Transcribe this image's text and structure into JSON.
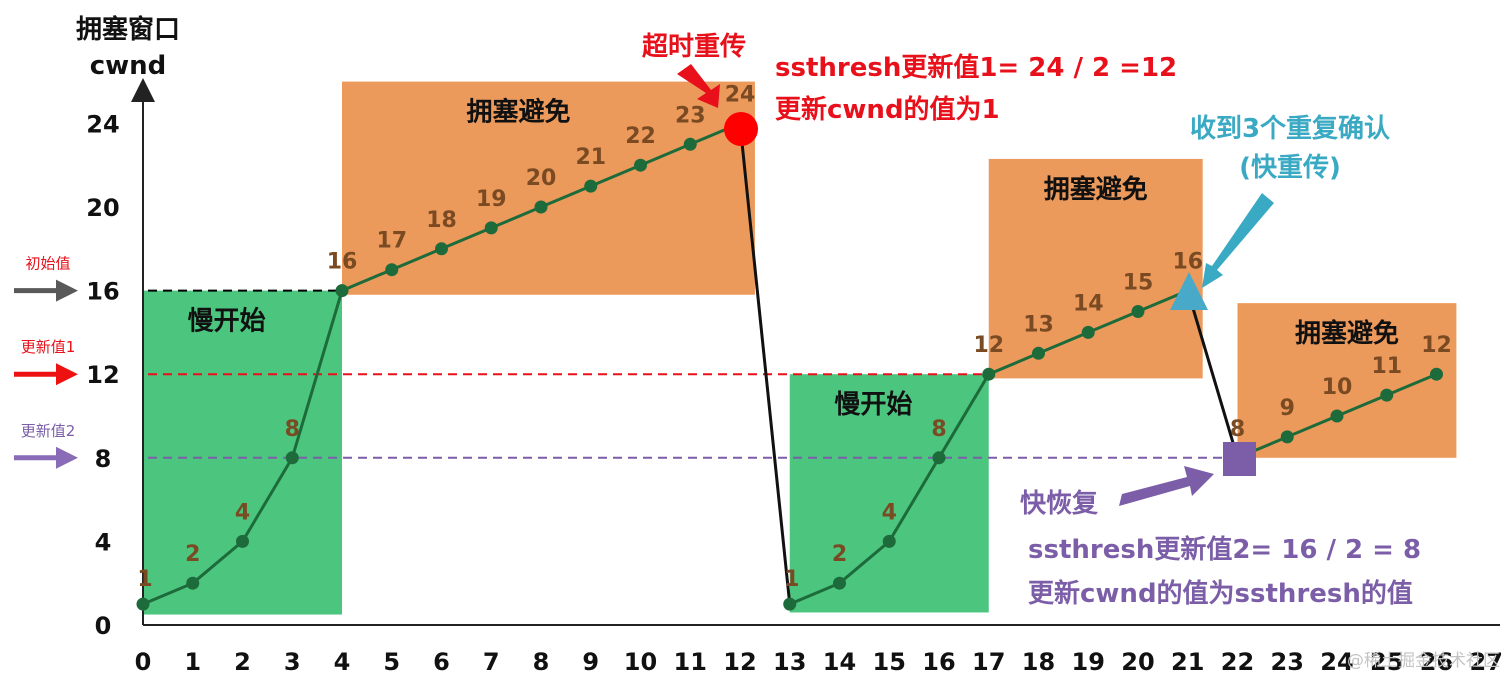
{
  "chart_data": {
    "type": "line",
    "ylabel_line1": "拥塞窗口",
    "ylabel_line2": "cwnd",
    "xlim": [
      0,
      27
    ],
    "ylim": [
      0,
      26
    ],
    "x_ticks": [
      0,
      1,
      2,
      3,
      4,
      5,
      6,
      7,
      8,
      9,
      10,
      11,
      12,
      13,
      14,
      15,
      16,
      17,
      18,
      19,
      20,
      21,
      22,
      23,
      24,
      25,
      26,
      27
    ],
    "y_ticks": [
      0,
      4,
      8,
      12,
      16,
      20,
      24
    ],
    "series": [
      {
        "segment": "1",
        "x": [
          0,
          1,
          2,
          3,
          4,
          5,
          6,
          7,
          8,
          9,
          10,
          11,
          12
        ],
        "y": [
          1,
          2,
          4,
          8,
          16,
          17,
          18,
          19,
          20,
          21,
          22,
          23,
          24
        ]
      },
      {
        "segment": "2",
        "x": [
          13,
          14,
          15,
          16,
          17,
          18,
          19,
          20,
          21
        ],
        "y": [
          1,
          2,
          4,
          8,
          12,
          13,
          14,
          15,
          16
        ]
      },
      {
        "segment": "3",
        "x": [
          22,
          23,
          24,
          25,
          26
        ],
        "y": [
          8,
          9,
          10,
          11,
          12
        ]
      }
    ],
    "drops": [
      {
        "from": [
          12,
          24
        ],
        "to": [
          13,
          1
        ]
      },
      {
        "from": [
          21,
          16
        ],
        "to": [
          22,
          8
        ]
      }
    ],
    "point_labels": [
      {
        "x": 0,
        "y": 1,
        "label": "1"
      },
      {
        "x": 1,
        "y": 2,
        "label": "2"
      },
      {
        "x": 2,
        "y": 4,
        "label": "4"
      },
      {
        "x": 3,
        "y": 8,
        "label": "8"
      },
      {
        "x": 4,
        "y": 16,
        "label": "16"
      },
      {
        "x": 5,
        "y": 17,
        "label": "17"
      },
      {
        "x": 6,
        "y": 18,
        "label": "18"
      },
      {
        "x": 7,
        "y": 19,
        "label": "19"
      },
      {
        "x": 8,
        "y": 20,
        "label": "20"
      },
      {
        "x": 9,
        "y": 21,
        "label": "21"
      },
      {
        "x": 10,
        "y": 22,
        "label": "22"
      },
      {
        "x": 11,
        "y": 23,
        "label": "23"
      },
      {
        "x": 12,
        "y": 24,
        "label": "24"
      },
      {
        "x": 13,
        "y": 1,
        "label": "1"
      },
      {
        "x": 14,
        "y": 2,
        "label": "2"
      },
      {
        "x": 15,
        "y": 4,
        "label": "4"
      },
      {
        "x": 16,
        "y": 8,
        "label": "8"
      },
      {
        "x": 17,
        "y": 12,
        "label": "12"
      },
      {
        "x": 18,
        "y": 13,
        "label": "13"
      },
      {
        "x": 19,
        "y": 14,
        "label": "14"
      },
      {
        "x": 20,
        "y": 15,
        "label": "15"
      },
      {
        "x": 21,
        "y": 16,
        "label": "16"
      },
      {
        "x": 22,
        "y": 8,
        "label": "8"
      },
      {
        "x": 23,
        "y": 9,
        "label": "9"
      },
      {
        "x": 24,
        "y": 10,
        "label": "10"
      },
      {
        "x": 25,
        "y": 11,
        "label": "11"
      },
      {
        "x": 26,
        "y": 12,
        "label": "12"
      }
    ],
    "regions": [
      {
        "label": "慢开始",
        "kind": "slow-start",
        "x": [
          0,
          4
        ],
        "y": [
          0.5,
          16
        ]
      },
      {
        "label": "拥塞避免",
        "kind": "congestion-avoidance",
        "x": [
          4,
          12.3
        ],
        "y": [
          15.8,
          26
        ]
      },
      {
        "label": "慢开始",
        "kind": "slow-start",
        "x": [
          13,
          17
        ],
        "y": [
          0.6,
          12
        ]
      },
      {
        "label": "拥塞避免",
        "kind": "congestion-avoidance",
        "x": [
          17,
          21.3
        ],
        "y": [
          11.8,
          22.3
        ]
      },
      {
        "label": "拥塞避免",
        "kind": "congestion-avoidance",
        "x": [
          22,
          26.4
        ],
        "y": [
          8,
          15.4
        ]
      }
    ],
    "thresholds": [
      {
        "y": 16,
        "side_label": "初始值",
        "color": "#000000",
        "arrow_color": "#595959",
        "x_end": 4
      },
      {
        "y": 12,
        "side_label": "更新值1",
        "color": "#e8101a",
        "arrow_color": "#ee1111",
        "x_end": 17
      },
      {
        "y": 8,
        "side_label": "更新值2",
        "color": "#7b5ea7",
        "arrow_color": "#8a6bb8",
        "x_end": 22
      }
    ],
    "annotations": {
      "timeout": {
        "title": "超时重传",
        "line1": "ssthresh更新值1= 24 / 2 =12",
        "line2": "更新cwnd的值为1"
      },
      "triple_ack": {
        "line1": "收到3个重复确认",
        "line2": "(快重传)"
      },
      "fast_recovery": {
        "title": "快恢复",
        "line1": "ssthresh更新值2= 16 / 2 = 8",
        "line2": "更新cwnd的值为ssthresh的值"
      }
    },
    "colors": {
      "slow_start_fill": "#4cc57f",
      "avoidance_fill": "#ec9a5c",
      "line": "#1d6b3a",
      "drop_line": "#111111",
      "point_label": "#7a4a22",
      "timeout_text": "#e8101a",
      "triple_ack_text": "#3aaac4",
      "fast_recovery_text": "#7b5ea7"
    }
  },
  "watermark": "@稀土掘金技术社区"
}
